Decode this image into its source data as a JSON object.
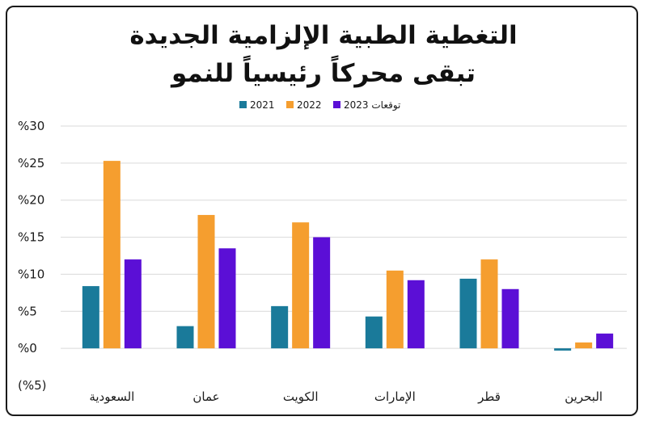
{
  "chart_data": {
    "type": "bar",
    "title_line1": "التغطية الطبية الإلزامية الجديدة",
    "title_line2": "تبقى محركاً رئيسياً للنمو",
    "categories": [
      "السعودية",
      "عمان",
      "الكويت",
      "الإمارات",
      "قطر",
      "البحرين"
    ],
    "series": [
      {
        "name": "2021",
        "color": "#1a7a9a",
        "values": [
          8.4,
          3.0,
          5.7,
          4.3,
          9.4,
          -0.3
        ]
      },
      {
        "name": "2022",
        "color": "#f59e2f",
        "values": [
          25.3,
          18.0,
          17.0,
          10.5,
          12.0,
          0.8
        ]
      },
      {
        "name": "توقعات 2023",
        "color": "#5b0fd6",
        "values": [
          12.0,
          13.5,
          15.0,
          9.2,
          8.0,
          2.0
        ]
      }
    ],
    "ylim": [
      -5,
      30
    ],
    "yticks": [
      {
        "value": 30,
        "label": "%30"
      },
      {
        "value": 25,
        "label": "%25"
      },
      {
        "value": 20,
        "label": "%20"
      },
      {
        "value": 15,
        "label": "%15"
      },
      {
        "value": 10,
        "label": "%10"
      },
      {
        "value": 5,
        "label": "%5"
      },
      {
        "value": 0,
        "label": "%0"
      },
      {
        "value": -5,
        "label": "(%5)"
      }
    ],
    "grid": true,
    "legend_position": "top-center"
  }
}
